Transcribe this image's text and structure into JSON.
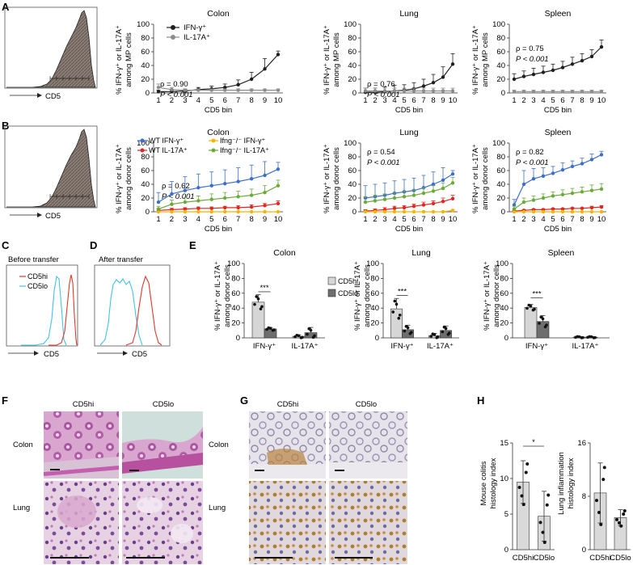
{
  "panel_labels": [
    "A",
    "B",
    "C",
    "D",
    "E",
    "F",
    "G",
    "H"
  ],
  "hist_xlabel": "CD5",
  "ylabel_mp": [
    "% IFN-γ⁺ or IL-17A⁺",
    "among MP cells"
  ],
  "ylabel_donor": [
    "% IFN-γ⁺ or IL-17A⁺",
    "among donor cells"
  ],
  "bin_xlabel": "CD5 bin",
  "legend_A": [
    "IFN-γ⁺",
    "IL-17A⁺"
  ],
  "legend_B": [
    "WT IFN-γ⁺",
    "WT IL-17A⁺",
    "Ifng⁻/⁻ IFN-γ⁺",
    "Ifng⁻/⁻ IL-17A⁺"
  ],
  "legend_CD": [
    "CD5hi",
    "CD5lo"
  ],
  "label_C": "Before transfer",
  "label_D": "After transfer",
  "legend_E": [
    "CD5hi",
    "CD5lo"
  ],
  "sig_E": "***",
  "sig_H": "*",
  "tissue_rows": [
    "Colon",
    "Lung"
  ],
  "col_heads": [
    "CD5hi",
    "CD5lo"
  ],
  "colors": {
    "ifn": "#1f1f1f",
    "il17": "#8c8c8c",
    "wt_ifn": "#3a6fcc",
    "wt_il17": "#e0261f",
    "ko_ifn": "#f4b400",
    "ko_il17": "#6aaa3a",
    "cd5hi": "#e0392b",
    "cd5lo": "#3fc4e8",
    "bar_hi": "#d6d6d6",
    "bar_lo": "#6e6e6e"
  },
  "chart_data": [
    {
      "id": "A",
      "type": "line",
      "xlabel": "CD5 bin",
      "ylim": [
        0,
        100
      ],
      "x": [
        1,
        2,
        3,
        4,
        5,
        6,
        7,
        8,
        9,
        10
      ],
      "panels": [
        {
          "title": "Colon",
          "stats": [
            "ρ = 0.90",
            "P < 0.001"
          ],
          "series": [
            {
              "name": "IFN-γ⁺",
              "values": [
                2,
                2,
                3,
                5,
                6,
                8,
                12,
                20,
                35,
                56
              ],
              "err": [
                2,
                2,
                2,
                3,
                4,
                5,
                7,
                10,
                15,
                5
              ]
            },
            {
              "name": "IL-17A⁺",
              "values": [
                8,
                5,
                4,
                4,
                4,
                4,
                4,
                4,
                4,
                4
              ],
              "err": [
                5,
                3,
                2,
                2,
                2,
                2,
                2,
                2,
                2,
                2
              ]
            }
          ]
        },
        {
          "title": "Lung",
          "stats": [
            "ρ = 0.76",
            "P < 0.001"
          ],
          "series": [
            {
              "name": "IFN-γ⁺",
              "values": [
                1,
                1,
                2,
                3,
                4,
                6,
                10,
                15,
                23,
                42
              ],
              "err": [
                6,
                6,
                7,
                8,
                8,
                9,
                10,
                12,
                15,
                15
              ]
            },
            {
              "name": "IL-17A⁺",
              "values": [
                3,
                3,
                3,
                3,
                3,
                3,
                3,
                3,
                3,
                3
              ],
              "err": [
                4,
                4,
                4,
                4,
                4,
                4,
                4,
                4,
                4,
                4
              ]
            }
          ]
        },
        {
          "title": "Spleen",
          "stats": [
            "ρ = 0.75",
            "P < 0.001"
          ],
          "series": [
            {
              "name": "IFN-γ⁺",
              "values": [
                20,
                24,
                27,
                30,
                33,
                37,
                42,
                47,
                53,
                67
              ],
              "err": [
                8,
                8,
                9,
                9,
                9,
                9,
                10,
                10,
                10,
                10
              ]
            },
            {
              "name": "IL-17A⁺",
              "values": [
                2,
                2,
                2,
                2,
                2,
                2,
                2,
                2,
                2,
                2
              ],
              "err": [
                2,
                2,
                2,
                2,
                2,
                2,
                2,
                2,
                2,
                2
              ]
            }
          ]
        }
      ]
    },
    {
      "id": "B",
      "type": "line",
      "xlabel": "CD5 bin",
      "ylim": [
        0,
        100
      ],
      "x": [
        1,
        2,
        3,
        4,
        5,
        6,
        7,
        8,
        9,
        10
      ],
      "panels": [
        {
          "title": "Colon",
          "stats": [
            "ρ = 0.62",
            "P < 0.001"
          ],
          "series": [
            {
              "name": "WT IFN-γ⁺",
              "values": [
                14,
                26,
                31,
                35,
                38,
                41,
                44,
                48,
                53,
                62
              ],
              "err": [
                14,
                18,
                20,
                20,
                20,
                20,
                20,
                20,
                20,
                10
              ]
            },
            {
              "name": "WT IL-17A⁺",
              "values": [
                2,
                3,
                4,
                5,
                5,
                6,
                6,
                7,
                9,
                12
              ],
              "err": [
                2,
                2,
                2,
                2,
                2,
                2,
                3,
                3,
                3,
                4
              ]
            },
            {
              "name": "Ifng⁻/⁻ IFN-γ⁺",
              "values": [
                0,
                0,
                0,
                0,
                0,
                0,
                0,
                0,
                0,
                0
              ],
              "err": [
                0,
                0,
                0,
                0,
                0,
                0,
                0,
                0,
                0,
                0
              ]
            },
            {
              "name": "Ifng⁻/⁻ IL-17A⁺",
              "values": [
                4,
                11,
                14,
                16,
                18,
                20,
                22,
                24,
                28,
                38
              ],
              "err": [
                4,
                6,
                7,
                7,
                8,
                8,
                8,
                9,
                10,
                8
              ]
            }
          ]
        },
        {
          "title": "Lung",
          "stats": [
            "ρ = 0.54",
            "P < 0.001"
          ],
          "series": [
            {
              "name": "WT IFN-γ⁺",
              "values": [
                20,
                22,
                24,
                27,
                29,
                31,
                35,
                40,
                46,
                55
              ],
              "err": [
                18,
                18,
                18,
                18,
                18,
                18,
                18,
                18,
                18,
                5
              ]
            },
            {
              "name": "WT IL-17A⁺",
              "values": [
                1,
                2,
                3,
                5,
                6,
                8,
                10,
                12,
                15,
                19
              ],
              "err": [
                2,
                2,
                3,
                3,
                3,
                3,
                4,
                4,
                5,
                5
              ]
            },
            {
              "name": "Ifng⁻/⁻ IFN-γ⁺",
              "values": [
                0,
                0,
                0,
                0,
                0,
                0,
                0,
                0,
                0,
                2
              ],
              "err": [
                0,
                0,
                0,
                0,
                0,
                0,
                0,
                0,
                0,
                1
              ]
            },
            {
              "name": "Ifng⁻/⁻ IL-17A⁺",
              "values": [
                14,
                16,
                18,
                20,
                22,
                24,
                27,
                30,
                34,
                42
              ],
              "err": [
                8,
                8,
                8,
                8,
                8,
                8,
                8,
                8,
                8,
                8
              ]
            }
          ]
        },
        {
          "title": "Spleen",
          "stats": [
            "ρ = 0.82",
            "P < 0.001"
          ],
          "series": [
            {
              "name": "WT IFN-γ⁺",
              "values": [
                10,
                40,
                48,
                52,
                56,
                61,
                66,
                70,
                76,
                83
              ],
              "err": [
                8,
                20,
                15,
                12,
                10,
                10,
                8,
                8,
                8,
                5
              ]
            },
            {
              "name": "WT IL-17A⁺",
              "values": [
                1,
                2,
                3,
                3,
                4,
                4,
                5,
                5,
                6,
                7
              ],
              "err": [
                1,
                1,
                1,
                1,
                1,
                1,
                1,
                1,
                2,
                2
              ]
            },
            {
              "name": "Ifng⁻/⁻ IFN-γ⁺",
              "values": [
                0,
                0,
                0,
                0,
                0,
                0,
                0,
                0,
                0,
                0
              ],
              "err": [
                0,
                0,
                0,
                0,
                0,
                0,
                0,
                0,
                0,
                0
              ]
            },
            {
              "name": "Ifng⁻/⁻ IL-17A⁺",
              "values": [
                4,
                14,
                17,
                20,
                23,
                25,
                27,
                29,
                31,
                33
              ],
              "err": [
                4,
                6,
                6,
                6,
                6,
                7,
                7,
                7,
                8,
                8
              ]
            }
          ]
        }
      ]
    },
    {
      "id": "E",
      "type": "bar",
      "ylim": [
        0,
        100
      ],
      "categories": [
        "IFN-γ⁺",
        "IL-17A⁺"
      ],
      "panels": [
        {
          "title": "Colon",
          "series": [
            {
              "name": "CD5hi",
              "values": [
                48,
                2
              ],
              "err": [
                10,
                2
              ]
            },
            {
              "name": "CD5lo",
              "values": [
                12,
                7
              ],
              "err": [
                2,
                7
              ]
            }
          ]
        },
        {
          "title": "Lung",
          "series": [
            {
              "name": "CD5hi",
              "values": [
                39,
                3
              ],
              "err": [
                14,
                3
              ]
            },
            {
              "name": "CD5lo",
              "values": [
                11,
                10
              ],
              "err": [
                6,
                6
              ]
            }
          ]
        },
        {
          "title": "Spleen",
          "series": [
            {
              "name": "CD5hi",
              "values": [
                41,
                1
              ],
              "err": [
                4,
                1
              ]
            },
            {
              "name": "CD5lo",
              "values": [
                22,
                1
              ],
              "err": [
                8,
                1
              ]
            }
          ]
        }
      ]
    },
    {
      "id": "H",
      "type": "bar",
      "categories": [
        "CD5hi",
        "CD5lo"
      ],
      "panels": [
        {
          "ylabel": [
            "Mouse colitis",
            "histology index"
          ],
          "ylim": [
            0,
            15
          ],
          "ticks": [
            0,
            5,
            10,
            15
          ],
          "values": [
            9.5,
            4.7
          ],
          "err": [
            3.0,
            3.5
          ]
        },
        {
          "ylabel": [
            "Lung inflammation",
            "histology index"
          ],
          "ylim": [
            0,
            16
          ],
          "ticks": [
            0,
            8,
            16
          ],
          "values": [
            8.5,
            4.8
          ],
          "err": [
            4.5,
            1.2
          ]
        }
      ]
    }
  ]
}
